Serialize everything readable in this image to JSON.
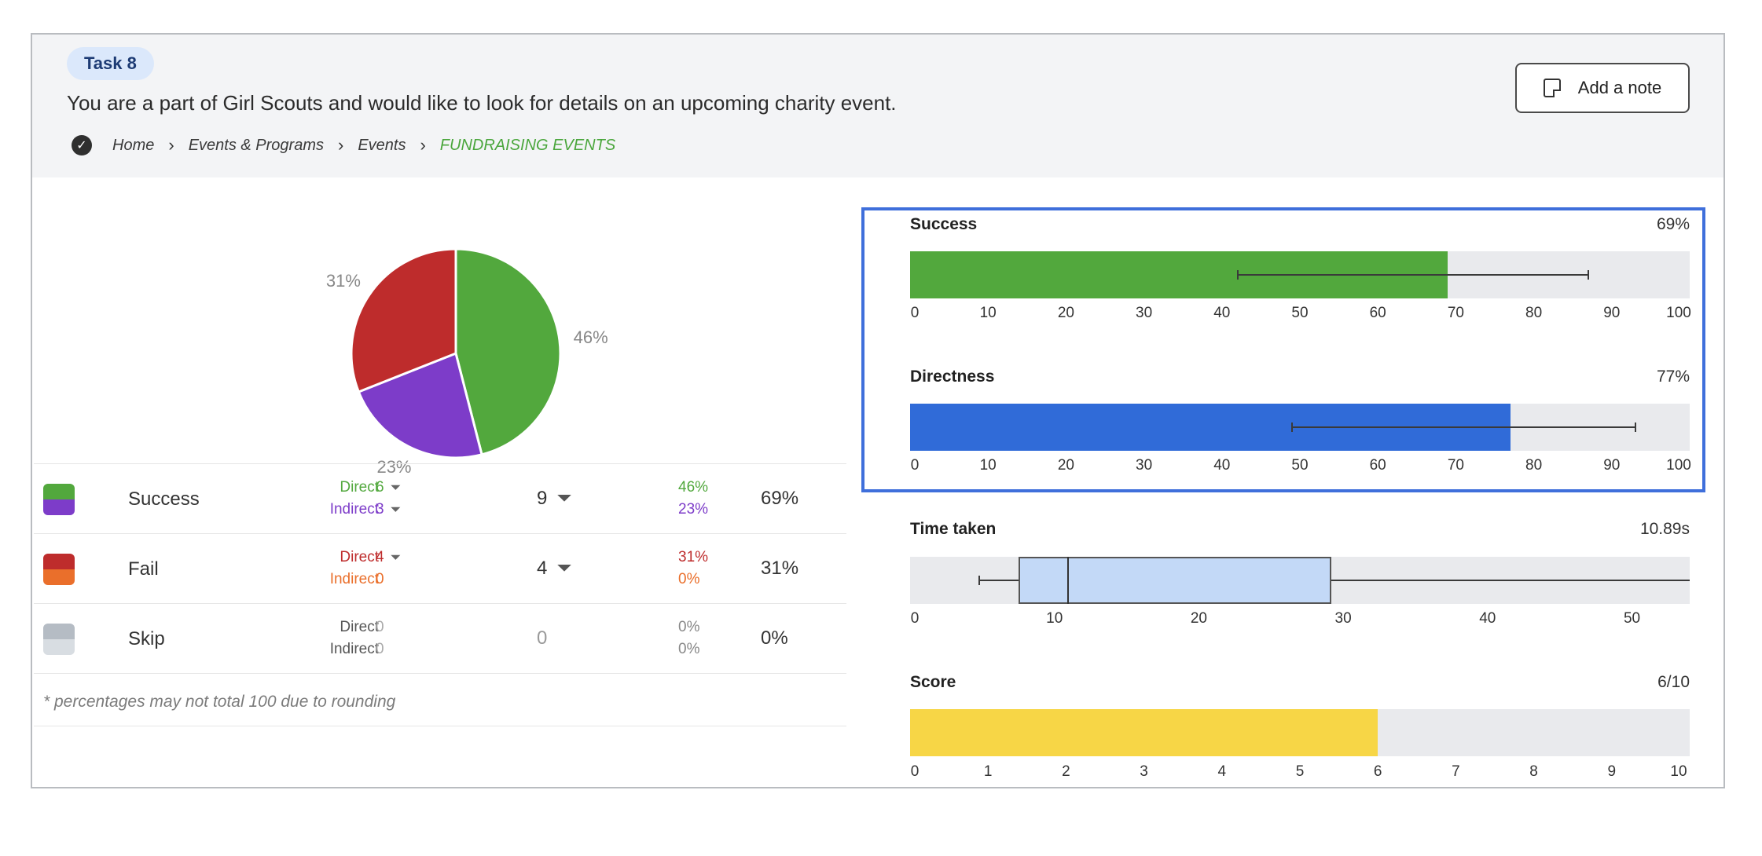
{
  "task": {
    "label": "Task 8",
    "description": "You are a part of Girl Scouts and would like to look for details on an upcoming charity event.",
    "breadcrumb": [
      "Home",
      "Events & Programs",
      "Events",
      "FUNDRAISING EVENTS"
    ],
    "add_note_label": "Add a note"
  },
  "colors": {
    "success": "#52a83d",
    "indirect_success": "#7d3cc9",
    "fail": "#be2c2c",
    "indirect_fail": "#ea6f2b",
    "skip": "#b5bcc4",
    "skip_light": "#d8dde2",
    "directness": "#306bd8",
    "score": "#f7d646",
    "box": "#c3d9f7"
  },
  "pie": {
    "slices": [
      {
        "label": "46%",
        "value": 46,
        "color": "#52a83d"
      },
      {
        "label": "23%",
        "value": 23,
        "color": "#7d3cc9"
      },
      {
        "label": "31%",
        "value": 31,
        "color": "#be2c2c"
      }
    ]
  },
  "legend": {
    "rows": [
      {
        "name": "Success",
        "direct_label": "Direct",
        "indirect_label": "Indirect",
        "direct_count": "6",
        "indirect_count": "3",
        "total": "9",
        "direct_pct": "46%",
        "indirect_pct": "23%",
        "overall_pct": "69%"
      },
      {
        "name": "Fail",
        "direct_label": "Direct",
        "indirect_label": "Indirect",
        "direct_count": "4",
        "indirect_count": "0",
        "total": "4",
        "direct_pct": "31%",
        "indirect_pct": "0%",
        "overall_pct": "31%"
      },
      {
        "name": "Skip",
        "direct_label": "Direct",
        "indirect_label": "Indirect",
        "direct_count": "0",
        "indirect_count": "0",
        "total": "0",
        "direct_pct": "0%",
        "indirect_pct": "0%",
        "overall_pct": "0%"
      }
    ],
    "footnote": "* percentages may not total 100 due to rounding"
  },
  "metrics": {
    "success": {
      "title": "Success",
      "value_label": "69%",
      "value": 69,
      "err_low": 42,
      "err_high": 87,
      "ticks": [
        "0",
        "10",
        "20",
        "30",
        "40",
        "50",
        "60",
        "70",
        "80",
        "90",
        "100"
      ]
    },
    "directness": {
      "title": "Directness",
      "value_label": "77%",
      "value": 77,
      "err_low": 49,
      "err_high": 93,
      "ticks": [
        "0",
        "10",
        "20",
        "30",
        "40",
        "50",
        "60",
        "70",
        "80",
        "90",
        "100"
      ]
    },
    "time": {
      "title": "Time taken",
      "value_label": "10.89s",
      "whisker_low": 4.8,
      "q1": 7.5,
      "median": 10.89,
      "q3": 29.2,
      "whisker_high": 54,
      "max": 54,
      "ticks": [
        "0",
        "10",
        "20",
        "30",
        "40",
        "50"
      ]
    },
    "score": {
      "title": "Score",
      "value_label": "6/10",
      "value": 6,
      "max": 10,
      "ticks": [
        "0",
        "1",
        "2",
        "3",
        "4",
        "5",
        "6",
        "7",
        "8",
        "9",
        "10"
      ]
    }
  }
}
